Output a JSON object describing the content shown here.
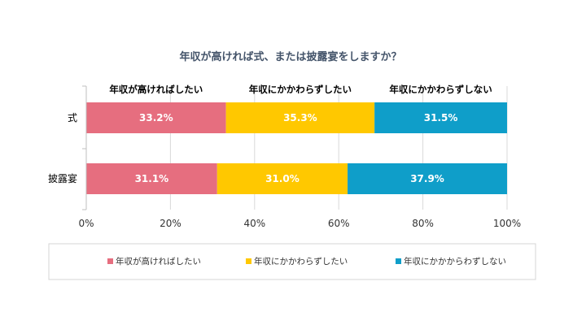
{
  "chart_data": {
    "type": "bar",
    "orientation": "horizontal",
    "stacked": true,
    "percent": true,
    "title": "年収が高ければ式、または披露宴をしますか？",
    "categories": [
      "式",
      "披露宴"
    ],
    "series": [
      {
        "name": "年収が高ければしたい",
        "color": "#e66e7f",
        "values": [
          33.2,
          31.1
        ],
        "labels": [
          "33.2%",
          "31.1%"
        ]
      },
      {
        "name": "年収にかかわらずしたい",
        "color": "#ffc800",
        "values": [
          35.3,
          31.0
        ],
        "labels": [
          "35.3%",
          "31.0%"
        ]
      },
      {
        "name": "年収にかかわらずしない",
        "color": "#0f9ec9",
        "values": [
          31.5,
          37.9
        ],
        "labels": [
          "31.5%",
          "37.9%"
        ]
      }
    ],
    "column_headers": [
      "年収が高ければしたい",
      "年収にかかわらずしたい",
      "年収にかかわらずしない"
    ],
    "legend_labels": [
      "年収が高ければしたい",
      "年収にかかわらずしたい",
      "年収にかかからわずしない"
    ],
    "xlim": [
      0,
      100
    ],
    "xticks": [
      "0%",
      "20%",
      "40%",
      "60%",
      "80%",
      "100%"
    ],
    "grid": true,
    "legend_position": "bottom"
  }
}
